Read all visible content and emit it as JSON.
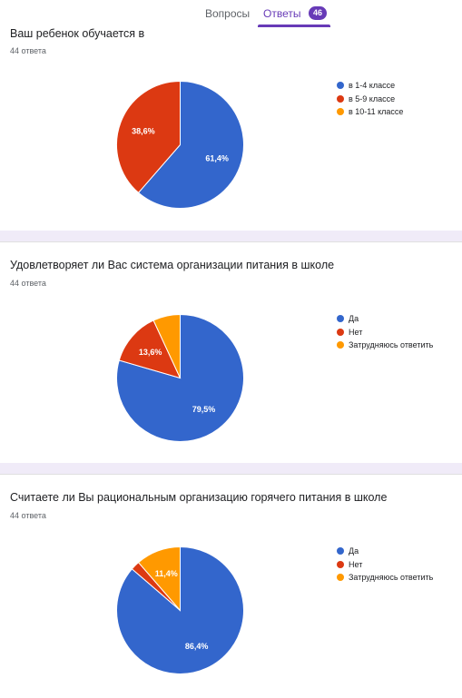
{
  "tabs": {
    "questions": "Вопросы",
    "answers": "Ответы",
    "answers_count": "46"
  },
  "colors": {
    "accent": "#673ab7",
    "series": [
      "#3366cc",
      "#dc3912",
      "#ff9900"
    ]
  },
  "chart_data": [
    {
      "type": "pie",
      "title": "Ваш ребенок обучается в",
      "responses": "44 ответа",
      "labels": [
        "в 1-4 классе",
        "в 5-9 классе",
        "в 10-11 классе"
      ],
      "values": [
        61.4,
        38.6,
        0
      ],
      "slice_labels": [
        "61,4%",
        "38,6%",
        ""
      ]
    },
    {
      "type": "pie",
      "title": "Удовлетворяет ли Вас система организации питания в школе",
      "responses": "44 ответа",
      "labels": [
        "Да",
        "Нет",
        "Затрудняюсь ответить"
      ],
      "values": [
        79.5,
        13.6,
        6.9
      ],
      "slice_labels": [
        "79,5%",
        "13,6%",
        ""
      ]
    },
    {
      "type": "pie",
      "title": "Считаете ли Вы рациональным организацию горячего питания в школе",
      "responses": "44 ответа",
      "labels": [
        "Да",
        "Нет",
        "Затрудняюсь ответить"
      ],
      "values": [
        86.4,
        2.3,
        11.4
      ],
      "slice_labels": [
        "86,4%",
        "",
        "11,4%"
      ]
    }
  ]
}
